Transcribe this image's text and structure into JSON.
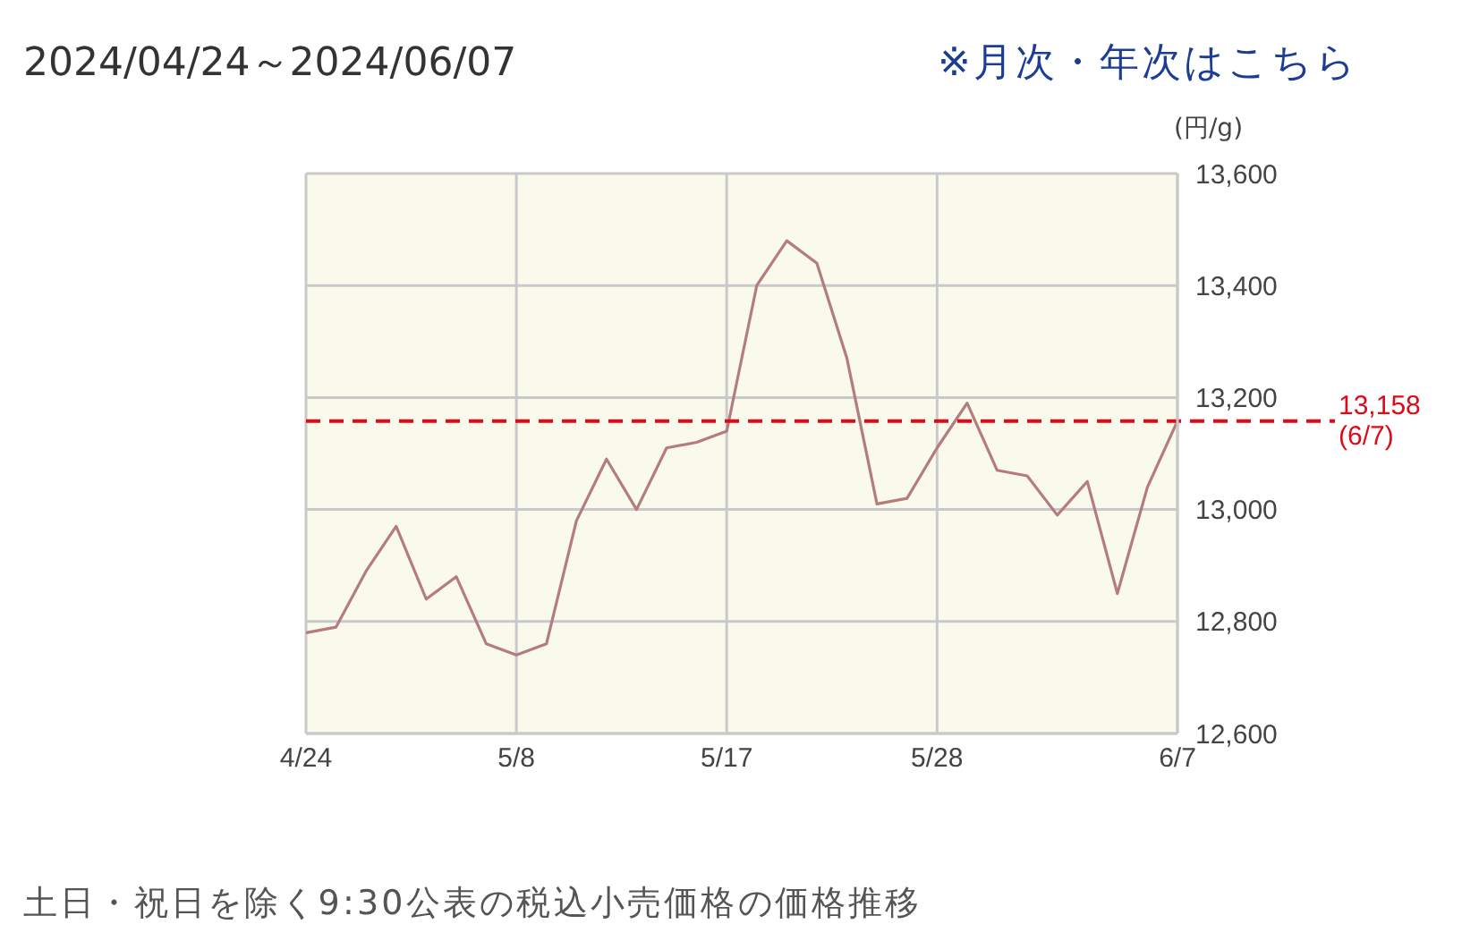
{
  "chart_data": {
    "type": "line",
    "title": "2024/04/24～2024/06/07",
    "ylabel": "(円/g)",
    "annotations": [
      "※月次・年次はこちら",
      "土日・祝日を除く9:30公表の税込小売価格の価格推移"
    ],
    "categories": [
      "4/24",
      null,
      null,
      null,
      null,
      null,
      null,
      "5/8",
      null,
      null,
      null,
      null,
      null,
      null,
      "5/17",
      null,
      null,
      null,
      null,
      null,
      null,
      "5/28",
      null,
      null,
      null,
      null,
      null,
      null,
      null,
      "6/7"
    ],
    "values": [
      12780,
      12790,
      12890,
      12970,
      12840,
      12880,
      12760,
      12740,
      12760,
      12980,
      13090,
      13000,
      13110,
      13120,
      13140,
      13400,
      13480,
      13440,
      13270,
      13010,
      13020,
      13110,
      13190,
      13070,
      13060,
      12990,
      13050,
      12850,
      13040,
      13158
    ],
    "color": "#b47c7c",
    "marker": "none",
    "ylim": [
      12600,
      13600
    ],
    "yticks": [
      {
        "value": 12600,
        "label": "12,600"
      },
      {
        "value": 12800,
        "label": "12,800"
      },
      {
        "value": 13000,
        "label": "13,000"
      },
      {
        "value": 13200,
        "label": "13,200"
      },
      {
        "value": 13400,
        "label": "13,400"
      },
      {
        "value": 13600,
        "label": "13,600"
      }
    ],
    "grid": true,
    "ref_lines": [
      {
        "axis": "y",
        "value": 13158,
        "label": "13,158\n(6/7)",
        "color": "#dd0a18",
        "line_style": "dashed"
      }
    ]
  }
}
